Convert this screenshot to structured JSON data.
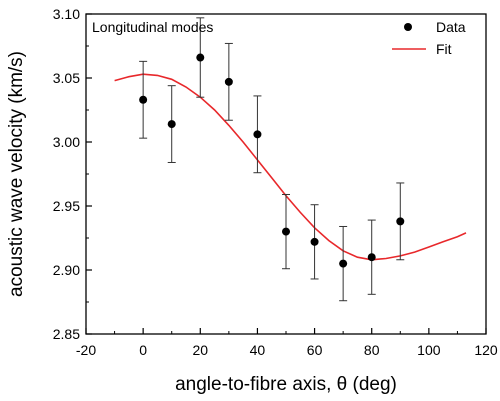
{
  "chart_data": {
    "type": "scatter",
    "annotation": "Longitudinal modes",
    "xlabel": "angle-to-fibre axis, θ (deg)",
    "ylabel": "acoustic wave velocity (km/s)",
    "xlim": [
      -20,
      120
    ],
    "ylim": [
      2.85,
      3.1
    ],
    "xticks": [
      -20,
      0,
      20,
      40,
      60,
      80,
      100,
      120
    ],
    "yticks": [
      2.85,
      2.9,
      2.95,
      3.0,
      3.05,
      3.1
    ],
    "xtick_labels": [
      "-20",
      "0",
      "20",
      "40",
      "60",
      "80",
      "100",
      "120"
    ],
    "ytick_labels": [
      "2.85",
      "2.90",
      "2.95",
      "3.00",
      "3.05",
      "3.10"
    ],
    "legend_position": "top-right",
    "grid": false,
    "series": [
      {
        "name": "Data",
        "kind": "scatter-errorbar",
        "color": "#000000",
        "x": [
          0,
          10,
          20,
          30,
          40,
          50,
          60,
          70,
          80,
          90
        ],
        "y": [
          3.033,
          3.014,
          3.066,
          3.047,
          3.006,
          2.93,
          2.922,
          2.905,
          2.91,
          2.938
        ],
        "yerr": [
          0.03,
          0.03,
          0.031,
          0.03,
          0.03,
          0.029,
          0.029,
          0.029,
          0.029,
          0.03
        ]
      },
      {
        "name": "Fit",
        "kind": "line",
        "color": "#e8282b",
        "x": [
          -10,
          -5,
          0,
          5,
          10,
          15,
          20,
          25,
          30,
          35,
          40,
          45,
          50,
          55,
          60,
          65,
          70,
          75,
          80,
          85,
          90,
          95,
          100,
          105,
          110,
          113
        ],
        "y": [
          3.048,
          3.051,
          3.053,
          3.052,
          3.049,
          3.043,
          3.035,
          3.025,
          3.013,
          3.0,
          2.986,
          2.972,
          2.958,
          2.945,
          2.933,
          2.923,
          2.915,
          2.91,
          2.908,
          2.909,
          2.911,
          2.914,
          2.918,
          2.922,
          2.926,
          2.929
        ]
      }
    ]
  }
}
